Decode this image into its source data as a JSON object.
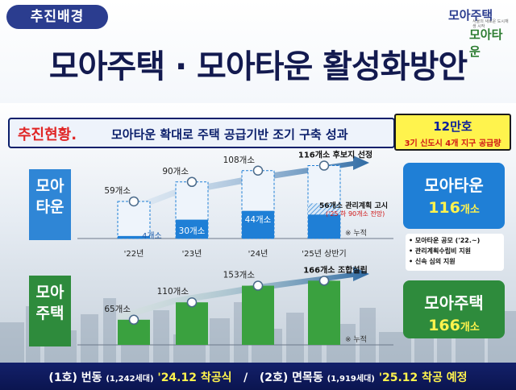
{
  "header": {
    "tag": "추진배경",
    "title": "모아주택 · 모아타운 활성화방안",
    "logo_line1": "모아주택",
    "logo_line2": "모아타운",
    "logo_sub": "서울의 새로운 도시재생 시작"
  },
  "subheader": {
    "head": "추진현황.",
    "text": "모아타운 확대로 주택 공급기반 조기 구축 성과"
  },
  "supply_box": {
    "big": "12만호",
    "small": "3기 신도시 4개 지구 공급량"
  },
  "labels": {
    "moatown_side": [
      "모아",
      "타운"
    ],
    "moahouse_side": [
      "모아",
      "주택"
    ],
    "cumulative_note": "※ 누적"
  },
  "cards": {
    "moatown": {
      "name": "모아타운",
      "count": "116",
      "unit": "개소"
    },
    "moahouse": {
      "name": "모아주택",
      "count": "166",
      "unit": "개소"
    }
  },
  "notes": [
    "• 모아타운 공모 ('22.~)",
    "• 관리계획수립비 지원",
    "• 신속 심의 지원"
  ],
  "bottom": {
    "p1": "(1호) 번동 ",
    "p1_small": "(1,242세대)",
    "p1_date": " '24.12 착공식",
    "sep": "   /   ",
    "p2": "(2호) 면목동 ",
    "p2_small": "(1,919세대)",
    "p2_date": " '25.12 착공 예정"
  },
  "colors": {
    "navy": "#131a4f",
    "blue": "#1f7fd6",
    "green": "#2e8b3c",
    "yellow": "#fff34d",
    "red": "#e02424"
  },
  "chart_data": [
    {
      "type": "bar",
      "name": "모아타운",
      "categories": [
        "'22년",
        "'23년",
        "'24년",
        "'25년 상반기"
      ],
      "cumulative": [
        59,
        90,
        108,
        116
      ],
      "cumulative_labels": [
        "59개소",
        "90개소",
        "108개소",
        "116개소 후보지 선정"
      ],
      "managed": [
        4,
        30,
        44,
        56
      ],
      "managed_labels": [
        "4개소",
        "30개소",
        "44개소",
        "56개소 관리계획 고시"
      ],
      "extra_note": "('25 하 90개소 전망)",
      "cumulative_note": "※ 누적"
    },
    {
      "type": "bar",
      "name": "모아주택",
      "categories": [
        "'22년",
        "'23년",
        "'24년",
        "'25년 상반기"
      ],
      "values": [
        65,
        110,
        153,
        166
      ],
      "value_labels": [
        "65개소",
        "110개소",
        "153개소",
        "166개소 조합설립"
      ],
      "cumulative_note": "※ 누적"
    }
  ]
}
